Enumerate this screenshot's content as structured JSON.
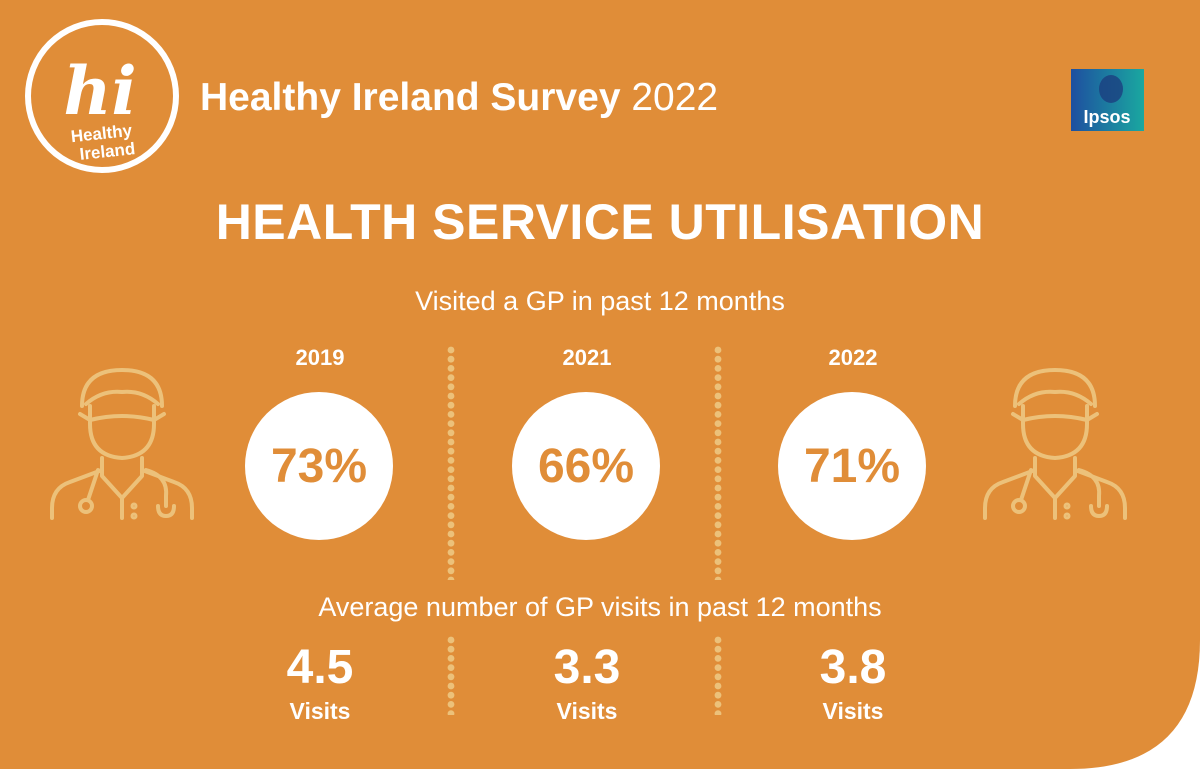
{
  "header": {
    "logo_hi": "hi",
    "logo_line1": "Healthy",
    "logo_line2": "Ireland",
    "title_bold": "Healthy Ireland Survey",
    "title_year": "2022",
    "partner_logo": "Ipsos"
  },
  "main_title": "HEALTH SERVICE UTILISATION",
  "gp_visited": {
    "heading": "Visited a GP in past 12 months",
    "columns": [
      {
        "year": "2019",
        "percent": "73%"
      },
      {
        "year": "2021",
        "percent": "66%"
      },
      {
        "year": "2022",
        "percent": "71%"
      }
    ]
  },
  "gp_visits_avg": {
    "heading": "Average number of GP visits in past 12 months",
    "columns": [
      {
        "value": "4.5",
        "label": "Visits"
      },
      {
        "value": "3.3",
        "label": "Visits"
      },
      {
        "value": "3.8",
        "label": "Visits"
      }
    ]
  },
  "colors": {
    "background": "#e08d38",
    "accent_light": "#ecc17a",
    "text": "#ffffff"
  },
  "icons": [
    "doctor-icon-left",
    "doctor-icon-right",
    "ipsos-logo",
    "healthy-ireland-logo"
  ]
}
